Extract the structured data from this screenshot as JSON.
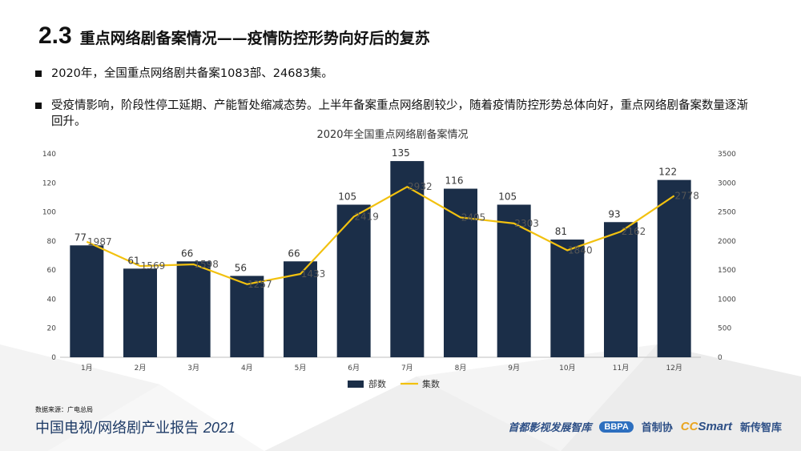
{
  "header": {
    "section_number": "2.3",
    "title": "重点网络剧备案情况——疫情防控形势向好后的复苏"
  },
  "bullets": [
    "2020年，全国重点网络剧共备案1083部、24683集。",
    "受疫情影响，阶段性停工延期、产能暂处缩减态势。上半年备案重点网络剧较少，随着疫情防控形势总体向好，重点网络剧备案数量逐渐回升。"
  ],
  "chart_data": {
    "type": "bar",
    "title": "2020年全国重点网络剧备案情况",
    "categories": [
      "1月",
      "2月",
      "3月",
      "4月",
      "5月",
      "6月",
      "7月",
      "8月",
      "9月",
      "10月",
      "11月",
      "12月"
    ],
    "series": [
      {
        "name": "部数",
        "type": "bar",
        "axis": "left",
        "color": "#1b2e48",
        "values": [
          77,
          61,
          66,
          56,
          66,
          105,
          135,
          116,
          105,
          81,
          93,
          122
        ]
      },
      {
        "name": "集数",
        "type": "line",
        "axis": "right",
        "color": "#f2c10f",
        "values": [
          1987,
          1569,
          1598,
          1257,
          1433,
          2419,
          2932,
          2405,
          2303,
          1840,
          2162,
          2778
        ]
      }
    ],
    "ylim_left": [
      0,
      140
    ],
    "yticks_left": [
      0,
      20,
      40,
      60,
      80,
      100,
      120,
      140
    ],
    "ylim_right": [
      0,
      3500
    ],
    "yticks_right": [
      0,
      500,
      1000,
      1500,
      2000,
      2500,
      3000,
      3500
    ],
    "legend_position": "bottom",
    "grid": false
  },
  "footer": {
    "source": "数据来源：广电总局",
    "report_title": "中国电视/网络剧产业报告",
    "report_year": "2021",
    "logo_1": "首都影视发展智库",
    "logo_2_badge": "BBPA",
    "logo_2_text": "首制协",
    "logo_3_cc": "CC",
    "logo_3_smart": "Smart",
    "logo_3_text": "新传智库"
  }
}
